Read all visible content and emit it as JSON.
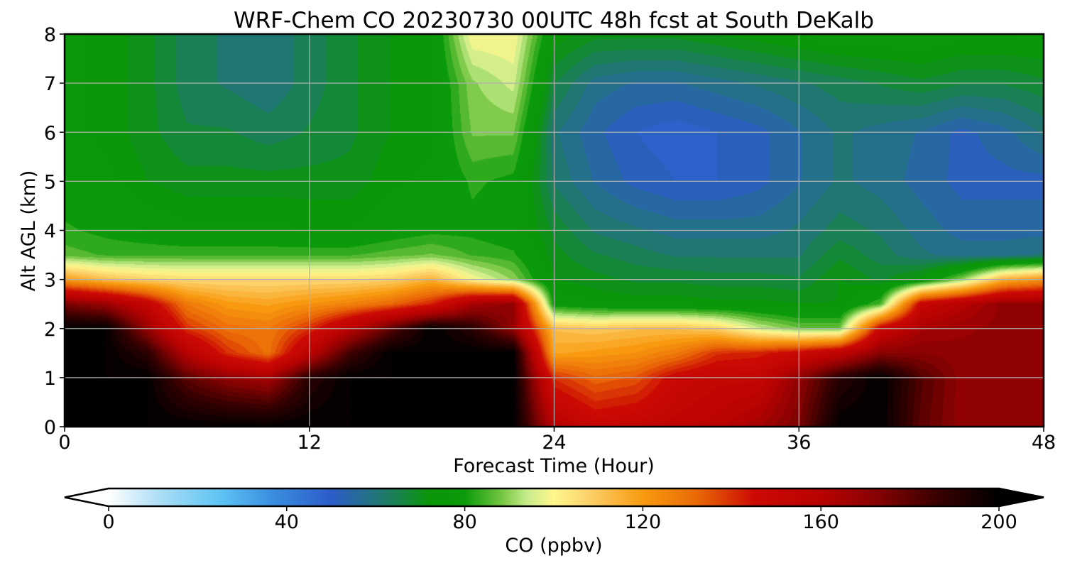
{
  "chart_data": {
    "type": "heatmap",
    "title": "WRF-Chem CO  20230730 00UTC 48h fcst at South DeKalb",
    "xlabel": "Forecast Time (Hour)",
    "ylabel": "Alt AGL (km)",
    "xlim": [
      0,
      48
    ],
    "ylim": [
      0,
      8
    ],
    "xticks": [
      "0",
      "12",
      "24",
      "36",
      "48"
    ],
    "yticks": [
      "0",
      "1",
      "2",
      "3",
      "4",
      "5",
      "6",
      "7",
      "8"
    ],
    "grid": true,
    "z_units": "ppbv",
    "x": [
      0,
      2,
      4,
      6,
      8,
      10,
      12,
      14,
      16,
      18,
      20,
      22,
      24,
      26,
      28,
      30,
      32,
      34,
      36,
      38,
      40,
      42,
      44,
      46,
      48
    ],
    "y": [
      0,
      1,
      1.5,
      2,
      2.5,
      3,
      3.5,
      4,
      5,
      6,
      7,
      8
    ],
    "z": [
      [
        200,
        200,
        200,
        200,
        200,
        200,
        200,
        200,
        200,
        200,
        200,
        200,
        160,
        150,
        152,
        155,
        158,
        165,
        175,
        200,
        200,
        180,
        170,
        170,
        170
      ],
      [
        200,
        200,
        200,
        180,
        170,
        165,
        190,
        200,
        200,
        200,
        200,
        200,
        140,
        132,
        135,
        148,
        152,
        152,
        170,
        190,
        200,
        182,
        170,
        170,
        170
      ],
      [
        200,
        200,
        190,
        160,
        140,
        130,
        158,
        185,
        200,
        200,
        200,
        200,
        118,
        120,
        122,
        128,
        140,
        142,
        148,
        156,
        172,
        172,
        170,
        170,
        170
      ],
      [
        200,
        200,
        170,
        140,
        130,
        128,
        140,
        160,
        180,
        200,
        190,
        170,
        112,
        110,
        112,
        112,
        108,
        95,
        88,
        88,
        150,
        165,
        168,
        170,
        170
      ],
      [
        175,
        168,
        152,
        128,
        120,
        118,
        122,
        126,
        132,
        142,
        165,
        170,
        78,
        75,
        74,
        74,
        73,
        73,
        72,
        72,
        85,
        150,
        160,
        170,
        170
      ],
      [
        120,
        112,
        108,
        106,
        106,
        106,
        106,
        106,
        108,
        115,
        100,
        90,
        72,
        70,
        68,
        68,
        67,
        67,
        66,
        72,
        68,
        74,
        90,
        115,
        122
      ],
      [
        86,
        84,
        84,
        84,
        84,
        84,
        84,
        84,
        86,
        88,
        84,
        82,
        70,
        66,
        64,
        62,
        62,
        62,
        62,
        68,
        64,
        60,
        58,
        58,
        60
      ],
      [
        82,
        80,
        78,
        76,
        76,
        76,
        75,
        75,
        78,
        80,
        80,
        78,
        68,
        62,
        60,
        58,
        58,
        58,
        60,
        64,
        62,
        58,
        55,
        55,
        55
      ],
      [
        78,
        76,
        72,
        70,
        70,
        70,
        70,
        70,
        74,
        76,
        82,
        80,
        62,
        56,
        52,
        50,
        50,
        52,
        56,
        60,
        58,
        55,
        52,
        52,
        52
      ],
      [
        76,
        74,
        70,
        66,
        66,
        64,
        66,
        68,
        72,
        74,
        88,
        88,
        60,
        54,
        50,
        48,
        50,
        52,
        56,
        60,
        58,
        56,
        52,
        55,
        60
      ],
      [
        76,
        74,
        70,
        64,
        62,
        60,
        64,
        68,
        72,
        74,
        90,
        95,
        66,
        58,
        56,
        56,
        58,
        60,
        62,
        64,
        66,
        68,
        66,
        66,
        68
      ],
      [
        76,
        74,
        70,
        64,
        62,
        60,
        64,
        68,
        72,
        74,
        100,
        100,
        74,
        70,
        70,
        70,
        72,
        74,
        76,
        78,
        78,
        78,
        76,
        76,
        76
      ]
    ],
    "colorbar": {
      "label": "CO  (ppbv)",
      "min": 0,
      "max": 200,
      "ticks": [
        "0",
        "40",
        "80",
        "120",
        "160",
        "200"
      ],
      "extend": "both",
      "stops": [
        {
          "v": 0,
          "c": "#ffffff"
        },
        {
          "v": 12,
          "c": "#a8dcf5"
        },
        {
          "v": 25,
          "c": "#5ec4f4"
        },
        {
          "v": 37,
          "c": "#3a8de0"
        },
        {
          "v": 50,
          "c": "#2c5cc8"
        },
        {
          "v": 62,
          "c": "#1f7a6a"
        },
        {
          "v": 72,
          "c": "#0a9608"
        },
        {
          "v": 80,
          "c": "#0b9a0b"
        },
        {
          "v": 88,
          "c": "#70c43e"
        },
        {
          "v": 94,
          "c": "#c8ec8c"
        },
        {
          "v": 100,
          "c": "#fff78c"
        },
        {
          "v": 108,
          "c": "#fcd069"
        },
        {
          "v": 120,
          "c": "#f89a10"
        },
        {
          "v": 132,
          "c": "#ea6a06"
        },
        {
          "v": 145,
          "c": "#cc0a04"
        },
        {
          "v": 160,
          "c": "#b80202"
        },
        {
          "v": 172,
          "c": "#8a0202"
        },
        {
          "v": 186,
          "c": "#3a0000"
        },
        {
          "v": 200,
          "c": "#000000"
        }
      ]
    }
  }
}
